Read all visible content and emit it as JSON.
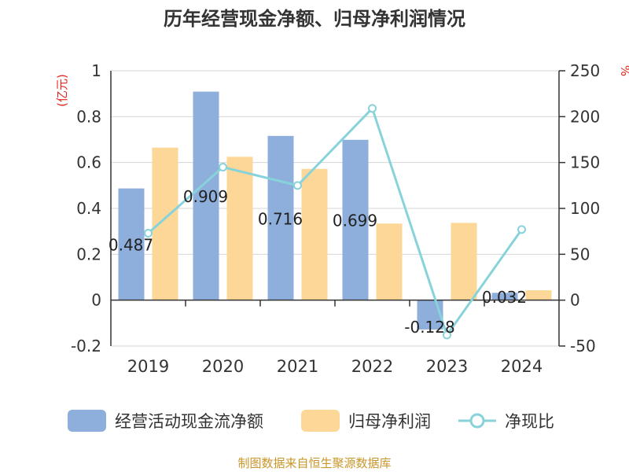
{
  "chart_data": {
    "type": "bar",
    "title": "历年经营现金净额、归母净利润情况",
    "categories": [
      "2019",
      "2020",
      "2021",
      "2022",
      "2023",
      "2024"
    ],
    "y_left": {
      "unit_label": "(亿元)",
      "ylim": [
        -0.2,
        1
      ],
      "ticks": [
        "-0.2",
        "0",
        "0.2",
        "0.4",
        "0.6",
        "0.8",
        "1"
      ]
    },
    "y_right": {
      "unit_label": "%",
      "ylim": [
        -50,
        250
      ],
      "ticks": [
        "-50",
        "0",
        "50",
        "100",
        "150",
        "200",
        "250"
      ]
    },
    "series": [
      {
        "name": "经营活动现金流净额",
        "kind": "bar",
        "axis": "left",
        "color": "#8eaedc",
        "values": [
          0.487,
          0.909,
          0.716,
          0.699,
          -0.128,
          0.032
        ],
        "labels": [
          "0.487",
          "0.909",
          "0.716",
          "0.699",
          "-0.128",
          "0.032"
        ]
      },
      {
        "name": "归母净利润",
        "kind": "bar",
        "axis": "left",
        "color": "#fdd797",
        "values": [
          0.665,
          0.625,
          0.572,
          0.334,
          0.337,
          0.043
        ]
      },
      {
        "name": "净现比",
        "kind": "line",
        "axis": "right",
        "color": "#88d3da",
        "values": [
          73,
          145,
          125,
          209,
          -38,
          77
        ]
      }
    ],
    "grid": true,
    "legend": "bottom"
  },
  "footer": {
    "source": "制图数据来自恒生聚源数据库"
  }
}
